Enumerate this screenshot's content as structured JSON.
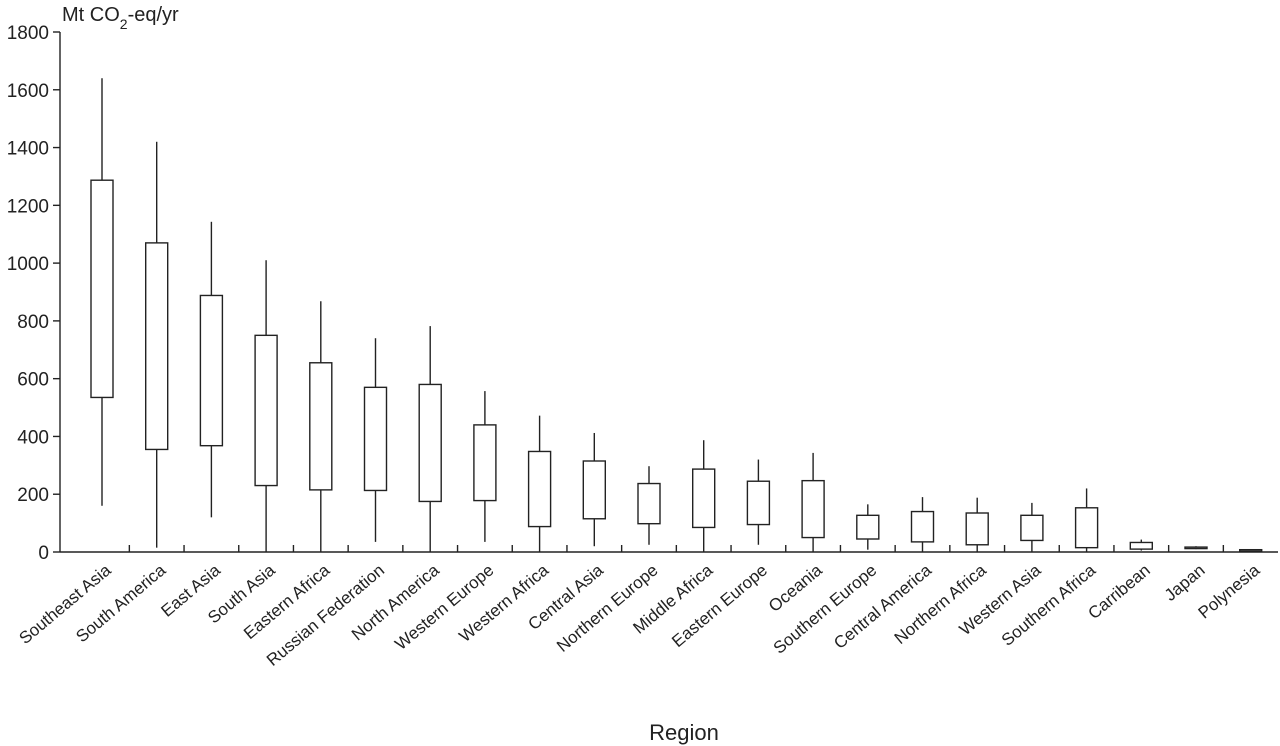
{
  "chart_data": {
    "type": "boxplot",
    "unit_label": {
      "prefix": "Mt CO",
      "subscript": "2",
      "suffix": "-eq/yr"
    },
    "xlabel": "Region",
    "ylim": [
      0,
      1800
    ],
    "yticks": [
      0,
      200,
      400,
      600,
      800,
      1000,
      1200,
      1400,
      1600,
      1800
    ],
    "grid": false,
    "legend": "none",
    "categories": [
      "Southeast Asia",
      "South America",
      "East Asia",
      "South Asia",
      "Eastern Africa",
      "Russian Federation",
      "North America",
      "Western Europe",
      "Western Africa",
      "Central Asia",
      "Northern Europe",
      "Middle Africa",
      "Eastern Europe",
      "Oceania",
      "Southern Europe",
      "Central America",
      "Northern Africa",
      "Western Asia",
      "Southern Africa",
      "Carribean",
      "Japan",
      "Polynesia"
    ],
    "boxes": [
      {
        "min": 160,
        "q1": 535,
        "q3": 1287,
        "max": 1640
      },
      {
        "min": 15,
        "q1": 355,
        "q3": 1070,
        "max": 1420
      },
      {
        "min": 120,
        "q1": 368,
        "q3": 888,
        "max": 1143
      },
      {
        "min": 0,
        "q1": 230,
        "q3": 750,
        "max": 1010
      },
      {
        "min": 0,
        "q1": 215,
        "q3": 655,
        "max": 868
      },
      {
        "min": 35,
        "q1": 213,
        "q3": 570,
        "max": 740
      },
      {
        "min": 0,
        "q1": 175,
        "q3": 580,
        "max": 782
      },
      {
        "min": 35,
        "q1": 178,
        "q3": 440,
        "max": 557
      },
      {
        "min": 0,
        "q1": 88,
        "q3": 348,
        "max": 472
      },
      {
        "min": 20,
        "q1": 115,
        "q3": 315,
        "max": 412
      },
      {
        "min": 25,
        "q1": 98,
        "q3": 237,
        "max": 297
      },
      {
        "min": 0,
        "q1": 85,
        "q3": 287,
        "max": 387
      },
      {
        "min": 25,
        "q1": 95,
        "q3": 245,
        "max": 320
      },
      {
        "min": 0,
        "q1": 50,
        "q3": 247,
        "max": 343
      },
      {
        "min": 8,
        "q1": 45,
        "q3": 127,
        "max": 165
      },
      {
        "min": 0,
        "q1": 35,
        "q3": 140,
        "max": 190
      },
      {
        "min": 0,
        "q1": 25,
        "q3": 135,
        "max": 188
      },
      {
        "min": 0,
        "q1": 40,
        "q3": 127,
        "max": 170
      },
      {
        "min": 0,
        "q1": 15,
        "q3": 153,
        "max": 220
      },
      {
        "min": 5,
        "q1": 10,
        "q3": 33,
        "max": 43
      },
      {
        "min": 10,
        "q1": 12,
        "q3": 17,
        "max": 20
      },
      {
        "min": 3,
        "q1": 5,
        "q3": 8,
        "max": 10
      }
    ]
  }
}
